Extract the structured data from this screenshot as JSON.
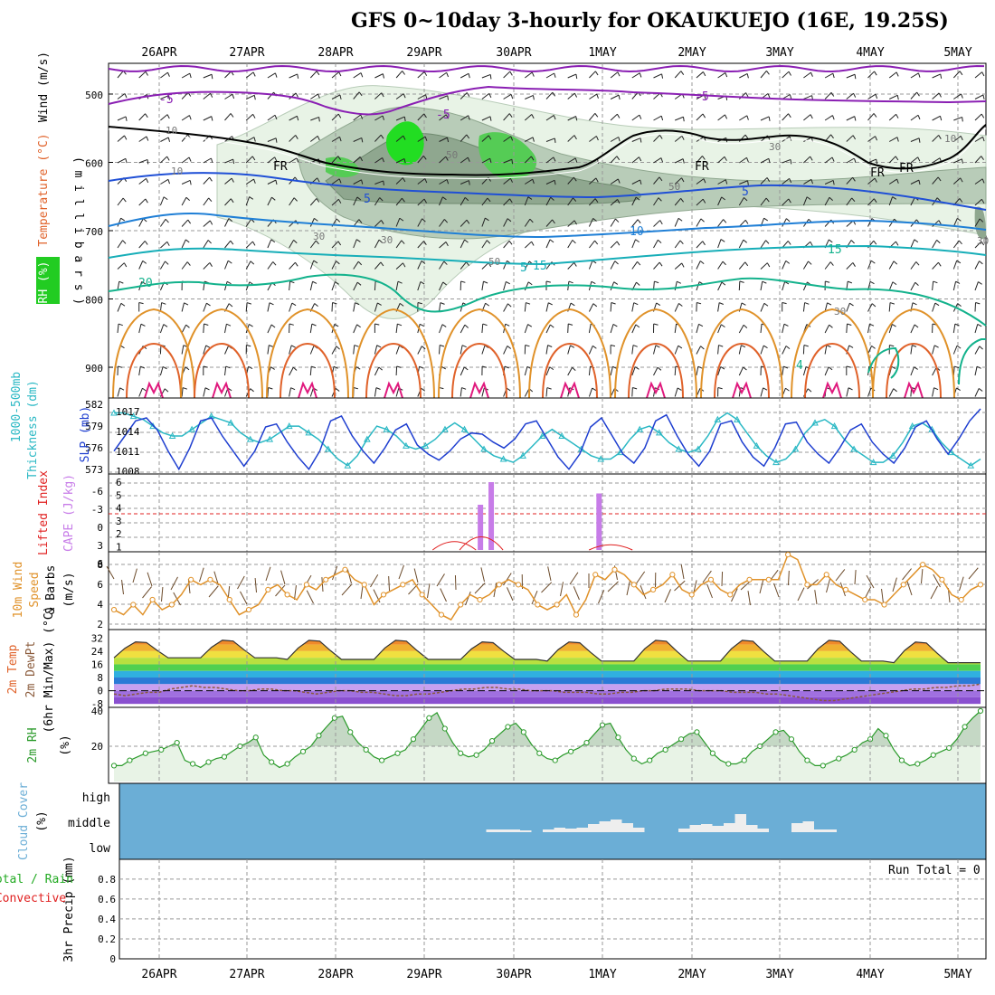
{
  "title": "GFS 0~10day 3-hourly for OKAUKUEJO (16E, 19.25S)",
  "colors": {
    "purple": "#8a1fb3",
    "blue": "#1f4fd6",
    "cyan": "#17aeb8",
    "teal": "#13b28c",
    "orange": "#e0922a",
    "darkorange": "#e0622a",
    "magenta": "#e0197d",
    "rh_light": "#e8f3e6",
    "rh_mid": "#b8ccb8",
    "rh_dark": "#8fa78f",
    "rh_green": "#22dd22",
    "cloud_bg": "#6baed6",
    "cape": "#c77ce8",
    "li": "#e02020",
    "wind": "#e0922a",
    "slp": "#1f3fd0",
    "thick": "#2ab8c4",
    "rh2m": "#2a9a2a"
  },
  "chart_data": [
    {
      "type": "cross-section",
      "name": "wind_temp_rh",
      "dates": [
        "26APR",
        "27APR",
        "28APR",
        "29APR",
        "30APR",
        "1MAY",
        "2MAY",
        "3MAY",
        "4MAY",
        "5MAY"
      ],
      "ylabel": "( m i l l i b a r s )",
      "yticks": [
        "500",
        "600",
        "700",
        "800",
        "900"
      ],
      "legend": [
        "Wind (m/s)",
        "Temperature (°C)",
        "RH (%)"
      ],
      "isotherm_labels": [
        "-5",
        "-5",
        "-5",
        "5",
        "5",
        "5",
        "10",
        "15",
        "15",
        "20",
        "FR",
        "FR",
        "FR",
        "FR",
        "4"
      ],
      "rh_labels": [
        "10",
        "10",
        "30",
        "30",
        "50",
        "50",
        "50",
        "30",
        "30",
        "10",
        "30"
      ]
    },
    {
      "type": "line",
      "name": "slp_thickness",
      "ylabel": [
        "1000-500mb",
        "Thickness (dm)",
        "SLP (mb)"
      ],
      "left_ticks": [
        "582",
        "579",
        "576",
        "573"
      ],
      "right_ticks": [
        "1017",
        "1014",
        "1011",
        "1008"
      ],
      "series": [
        {
          "name": "SLP (mb)",
          "ylim": [
            1007.5,
            1019.5
          ],
          "values": [
            1011.0,
            1013.5,
            1016.0,
            1016.5,
            1014.5,
            1011.0,
            1008.0,
            1011.5,
            1016.0,
            1016.5,
            1013.5,
            1011.0,
            1008.5,
            1011.0,
            1015.0,
            1015.5,
            1012.5,
            1010.0,
            1008.0,
            1011.0,
            1016.0,
            1016.8,
            1013.5,
            1011.0,
            1009.0,
            1011.5,
            1014.5,
            1015.5,
            1012.0,
            1010.5,
            1009.5,
            1011.0,
            1013.0,
            1014.0,
            1013.8,
            1012.5,
            1011.5,
            1013.0,
            1015.5,
            1016.0,
            1013.0,
            1010.0,
            1008.0,
            1010.5,
            1015.0,
            1016.5,
            1013.5,
            1010.5,
            1009.0,
            1011.5,
            1016.0,
            1017.0,
            1013.5,
            1010.5,
            1008.5,
            1011.0,
            1015.5,
            1016.0,
            1012.5,
            1010.0,
            1008.5,
            1011.5,
            1015.5,
            1015.8,
            1012.5,
            1010.5,
            1009.0,
            1011.5,
            1014.5,
            1015.5,
            1012.5,
            1010.5,
            1009.0,
            1011.5,
            1015.0,
            1016.0,
            1013.0,
            1010.5,
            1013.0,
            1016.0,
            1018.0
          ]
        },
        {
          "name": "1000-500mb Thickness (dm)",
          "ylim": [
            572.5,
            583.5
          ],
          "values": [
            581.5,
            581.5,
            581.0,
            580.5,
            579.5,
            578.5,
            578.0,
            578.0,
            579.0,
            580.0,
            581.0,
            580.5,
            580.0,
            578.5,
            577.5,
            577.0,
            577.5,
            578.5,
            579.5,
            579.5,
            578.5,
            577.5,
            576.0,
            574.5,
            573.5,
            575.0,
            577.5,
            579.5,
            579.0,
            578.0,
            576.5,
            576.0,
            576.5,
            577.5,
            579.0,
            580.0,
            579.0,
            577.5,
            576.0,
            575.0,
            574.5,
            574.0,
            575.0,
            576.5,
            578.0,
            579.0,
            578.0,
            577.0,
            576.0,
            575.0,
            574.5,
            574.5,
            575.5,
            577.5,
            579.0,
            579.5,
            578.5,
            577.0,
            576.0,
            575.5,
            576.0,
            578.0,
            580.5,
            581.5,
            580.5,
            578.5,
            576.5,
            575.0,
            574.0,
            574.5,
            576.0,
            578.5,
            580.0,
            580.5,
            579.5,
            577.5,
            576.0,
            575.0,
            574.0,
            574.0,
            575.0,
            577.0,
            579.5,
            580.0,
            579.0,
            577.0,
            575.5,
            574.5,
            573.5,
            574.5
          ]
        }
      ]
    },
    {
      "type": "bar",
      "name": "lifted_cape",
      "ylabel": [
        "Lifted Index",
        "CAPE (J/kg)"
      ],
      "li_ticks": [
        "-6",
        "-3",
        "0",
        "3",
        "6"
      ],
      "cape_ticks": [
        "6",
        "5",
        "4",
        "3",
        "2",
        "1"
      ],
      "cape_series": {
        "name": "CAPE (J/kg)",
        "x_index": [
          25,
          26,
          36
        ],
        "values": [
          4,
          6,
          5
        ]
      },
      "li_series": {
        "name": "Lifted Index",
        "values": [
          6,
          6,
          6,
          6,
          6,
          6,
          6,
          6,
          6,
          6,
          6,
          6,
          6,
          6,
          6,
          6,
          6,
          6,
          6,
          6,
          6,
          6,
          6,
          5,
          4,
          5,
          6,
          6,
          6,
          6,
          6,
          6,
          6,
          6,
          6,
          6,
          6,
          6,
          6,
          6,
          6,
          6,
          6,
          6,
          6,
          6,
          6,
          6,
          6,
          6,
          6,
          6,
          6,
          6,
          6,
          6,
          6,
          6,
          6,
          6,
          6,
          6,
          6,
          6,
          6,
          6,
          6,
          6,
          6,
          6,
          6,
          6,
          6,
          6,
          6,
          6,
          6,
          6,
          6,
          6,
          6
        ]
      },
      "li_bumps": [
        {
          "center": 23,
          "value": 4.5
        },
        {
          "center": 25.5,
          "value": 3.0
        },
        {
          "center": 37.5,
          "value": 5.5
        }
      ]
    },
    {
      "type": "line",
      "name": "wind10m",
      "ylabel": [
        "10m Wind",
        "Speed",
        "& Barbs",
        "(m/s)"
      ],
      "yticks": [
        "8",
        "6",
        "4",
        "2"
      ],
      "ylim": [
        1.2,
        8.6
      ],
      "values": [
        3.0,
        2.5,
        3.5,
        2.5,
        4.0,
        3.0,
        3.5,
        4.5,
        6.0,
        5.5,
        6.0,
        5.5,
        4.0,
        2.5,
        3.0,
        3.5,
        5.0,
        5.5,
        4.5,
        4.0,
        5.5,
        5.0,
        6.0,
        6.5,
        7.0,
        6.0,
        5.5,
        3.5,
        4.5,
        5.0,
        5.5,
        6.0,
        4.5,
        3.5,
        2.5,
        2.0,
        3.5,
        4.5,
        4.0,
        4.5,
        5.5,
        6.0,
        5.5,
        5.0,
        3.5,
        3.0,
        3.5,
        4.5,
        2.5,
        4.0,
        6.5,
        6.0,
        7.0,
        6.5,
        5.5,
        4.5,
        5.0,
        5.5,
        6.5,
        5.0,
        4.5,
        5.5,
        6.0,
        5.0,
        4.5,
        5.5,
        6.0,
        6.0,
        6.0,
        6.0,
        8.5,
        8.0,
        5.5,
        5.5,
        6.5,
        5.5,
        5.0,
        4.5,
        4.0,
        4.0,
        3.5,
        4.5,
        5.5,
        6.5,
        7.5,
        7.0,
        6.0,
        4.5,
        4.0,
        5.0,
        5.5
      ]
    },
    {
      "type": "area",
      "name": "temp_dewpt",
      "ylabel": [
        "2m Temp",
        "2m DewPt",
        "(6hr Min/Max) (°C)"
      ],
      "yticks": [
        "32",
        "24",
        "16",
        "8",
        "0",
        "-8"
      ],
      "ylim": [
        -9,
        36
      ],
      "temp_day_max": [
        30,
        31,
        31,
        31,
        30,
        30,
        31,
        31,
        31,
        30
      ],
      "temp_night_min": [
        20,
        20,
        19,
        19,
        19,
        18,
        18,
        18,
        18,
        17
      ],
      "dewpoint": [
        -2,
        -3,
        -2,
        -1,
        -1,
        1,
        2,
        3,
        2,
        2,
        1,
        0,
        0,
        1,
        1,
        0,
        0,
        -1,
        -2,
        -1,
        0,
        0,
        -1,
        -1,
        -2,
        -3,
        -3,
        -2,
        -2,
        -1,
        0,
        1,
        1,
        2,
        2,
        1,
        1,
        0,
        0,
        0,
        -1,
        -1,
        -1,
        -2,
        -2,
        -1,
        -1,
        0,
        0,
        1,
        1,
        1,
        0,
        0,
        0,
        -1,
        -1,
        -1,
        -2,
        -2,
        -3,
        -4,
        -5,
        -6,
        -6,
        -5,
        -4,
        -3,
        -2,
        -1,
        0,
        1,
        1,
        2,
        2,
        3,
        3,
        4
      ]
    },
    {
      "type": "area",
      "name": "rh2m",
      "ylabel": [
        "2m RH",
        "(%)"
      ],
      "yticks": [
        "40",
        "20"
      ],
      "ylim": [
        0,
        41
      ],
      "values": [
        9,
        9,
        12,
        14,
        16,
        17,
        18,
        20,
        22,
        12,
        10,
        8,
        11,
        13,
        14,
        17,
        20,
        22,
        25,
        15,
        11,
        8,
        10,
        14,
        17,
        20,
        26,
        31,
        36,
        37,
        28,
        22,
        18,
        14,
        12,
        14,
        16,
        18,
        24,
        30,
        36,
        39,
        30,
        22,
        16,
        14,
        15,
        18,
        23,
        27,
        31,
        33,
        28,
        21,
        16,
        13,
        12,
        15,
        17,
        19,
        22,
        27,
        32,
        33,
        25,
        18,
        13,
        10,
        12,
        16,
        18,
        21,
        24,
        27,
        28,
        22,
        16,
        12,
        10,
        10,
        12,
        17,
        20,
        24,
        28,
        29,
        24,
        17,
        12,
        9,
        9,
        11,
        13,
        15,
        18,
        22,
        24,
        30,
        26,
        18,
        12,
        9,
        10,
        12,
        15,
        17,
        19,
        24,
        31,
        36,
        40
      ]
    },
    {
      "type": "bar",
      "name": "cloud_cover",
      "ylabel": [
        "Cloud Cover",
        "(%)"
      ],
      "levels": [
        "high",
        "middle",
        "low"
      ],
      "middle_series": {
        "x_index": [
          15,
          16,
          17,
          18,
          20,
          21,
          22,
          23,
          24,
          25,
          26,
          27,
          28,
          32,
          33,
          34,
          35,
          36,
          37,
          38,
          39,
          40,
          41,
          42,
          43,
          44,
          45
        ],
        "values": [
          3,
          3,
          3,
          2,
          3,
          5,
          4,
          5,
          9,
          12,
          14,
          10,
          5,
          4,
          8,
          9,
          7,
          10,
          20,
          8,
          4,
          0,
          0,
          10,
          12,
          3,
          3
        ]
      }
    },
    {
      "type": "bar",
      "name": "precip",
      "ylabel": [
        "3hr Precip (mm)",
        "Total / Rain",
        "Convective"
      ],
      "yticks": [
        "0.8",
        "0.6",
        "0.4",
        "0.2",
        "0"
      ],
      "ylim": [
        0,
        0.98
      ],
      "run_total": "Run Total = 0",
      "values": []
    }
  ]
}
